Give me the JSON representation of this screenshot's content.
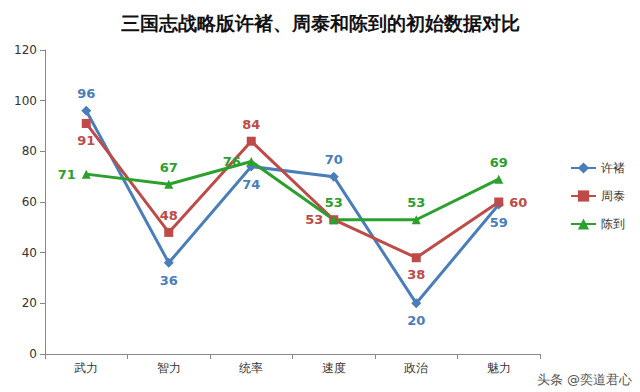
{
  "chart_data": {
    "type": "line",
    "title": "三国志战略版许褚、周泰和陈到的初始数据对比",
    "categories": [
      "武力",
      "智力",
      "统率",
      "速度",
      "政治",
      "魅力"
    ],
    "series": [
      {
        "name": "许褚",
        "color": "#4a7ebb",
        "marker": "diamond",
        "values": [
          96,
          36,
          74,
          70,
          20,
          59
        ]
      },
      {
        "name": "周泰",
        "color": "#be4b48",
        "marker": "square",
        "values": [
          91,
          48,
          84,
          53,
          38,
          60
        ]
      },
      {
        "name": "陈到",
        "color": "#2ca02c",
        "marker": "triangle",
        "values": [
          71,
          67,
          76,
          53,
          53,
          69
        ]
      }
    ],
    "ylim": [
      0,
      120
    ],
    "yticks": [
      0,
      20,
      40,
      60,
      80,
      100,
      120
    ],
    "grid": false,
    "legend": "right",
    "data_labels": true,
    "annotations": [
      "头条 @奕道君心"
    ]
  }
}
